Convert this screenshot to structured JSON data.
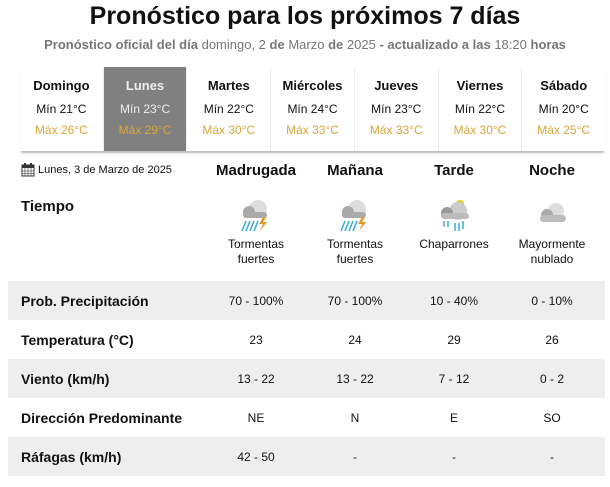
{
  "title": "Pronóstico para los próximos 7 días",
  "subtitle": {
    "p1": "Pronóstico oficial del día",
    "p2": "domingo, 2",
    "p3": "de",
    "p4": "Marzo",
    "p5": "de",
    "p6": "2025",
    "p7": "- actualizado a las",
    "p8": "18:20",
    "p9": "horas"
  },
  "days": [
    {
      "name": "Domingo",
      "min": "Mín 21°C",
      "max": "Máx 26°C",
      "active": false
    },
    {
      "name": "Lunes",
      "min": "Mín 23°C",
      "max": "Máx 29°C",
      "active": true
    },
    {
      "name": "Martes",
      "min": "Mín 22°C",
      "max": "Máx 30°C",
      "active": false
    },
    {
      "name": "Miércoles",
      "min": "Mín 24°C",
      "max": "Máx 33°C",
      "active": false
    },
    {
      "name": "Jueves",
      "min": "Mín 23°C",
      "max": "Máx 33°C",
      "active": false
    },
    {
      "name": "Viernes",
      "min": "Mín 22°C",
      "max": "Máx 30°C",
      "active": false
    },
    {
      "name": "Sábado",
      "min": "Mín 20°C",
      "max": "Máx 25°C",
      "active": false
    }
  ],
  "detail": {
    "date": "Lunes, 3 de Marzo de 2025",
    "periods": [
      "Madrugada",
      "Mañana",
      "Tarde",
      "Noche"
    ],
    "weather_label": "Tiempo",
    "weather": [
      {
        "l1": "Tormentas",
        "l2": "fuertes",
        "icon": "thunderstorm-icon"
      },
      {
        "l1": "Tormentas",
        "l2": "fuertes",
        "icon": "thunderstorm-icon"
      },
      {
        "l1": "Chaparrones",
        "l2": "",
        "icon": "showers-sun-icon"
      },
      {
        "l1": "Mayormente",
        "l2": "nublado",
        "icon": "cloudy-night-icon"
      }
    ],
    "rows": [
      {
        "label": "Prob. Precipitación",
        "values": [
          "70 - 100%",
          "70 - 100%",
          "10 - 40%",
          "0 - 10%"
        ]
      },
      {
        "label": "Temperatura (°C)",
        "values": [
          "23",
          "24",
          "29",
          "26"
        ]
      },
      {
        "label": "Viento (km/h)",
        "values": [
          "13 - 22",
          "13 - 22",
          "7 - 12",
          "0 - 2"
        ]
      },
      {
        "label": "Dirección Predominante",
        "values": [
          "NE",
          "N",
          "E",
          "SO"
        ]
      },
      {
        "label": "Ráfagas (km/h)",
        "values": [
          "42 - 50",
          "-",
          "-",
          "-"
        ]
      }
    ]
  },
  "colors": {
    "accent_max": "#d9a63a",
    "active_tab": "#808080",
    "row_alt": "#eeeeee"
  }
}
